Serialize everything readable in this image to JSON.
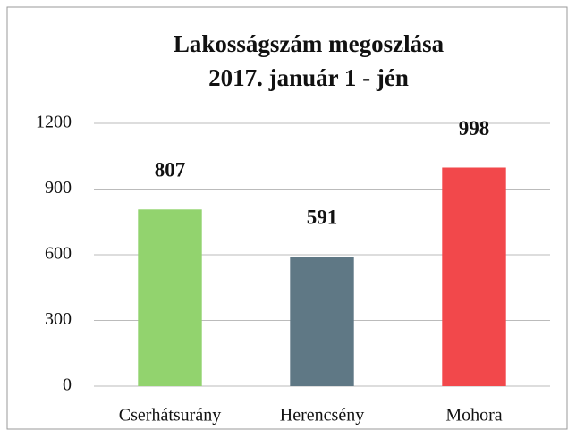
{
  "chart_data": {
    "type": "bar",
    "title": [
      "Lakosságszám megoszlása",
      "2017. január 1 - jén"
    ],
    "categories": [
      "Cserhátsurány",
      "Herencsény",
      "Mohora"
    ],
    "values": [
      807,
      591,
      998
    ],
    "colors": [
      "#92d36e",
      "#5f7885",
      "#f2484b"
    ],
    "ylim": [
      0,
      1200
    ],
    "yticks": [
      0,
      300,
      600,
      900,
      1200
    ],
    "grid": true
  }
}
